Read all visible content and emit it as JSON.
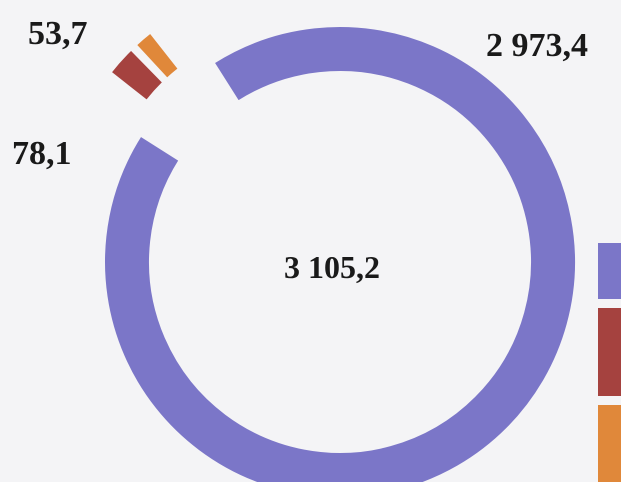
{
  "chart_data": {
    "type": "pie",
    "style": "donut",
    "total_label": "3 105,2",
    "slices": [
      {
        "label": "2 973,4",
        "value": 2973.4,
        "color": "#7b76c8"
      },
      {
        "label": "78,1",
        "value": 78.1,
        "color": "#a5423f"
      },
      {
        "label": "53,7",
        "value": 53.7,
        "color": "#e0883a"
      }
    ],
    "legend": {
      "placement": "right",
      "colors": [
        "#7b76c8",
        "#a5423f",
        "#e0883a"
      ]
    }
  }
}
